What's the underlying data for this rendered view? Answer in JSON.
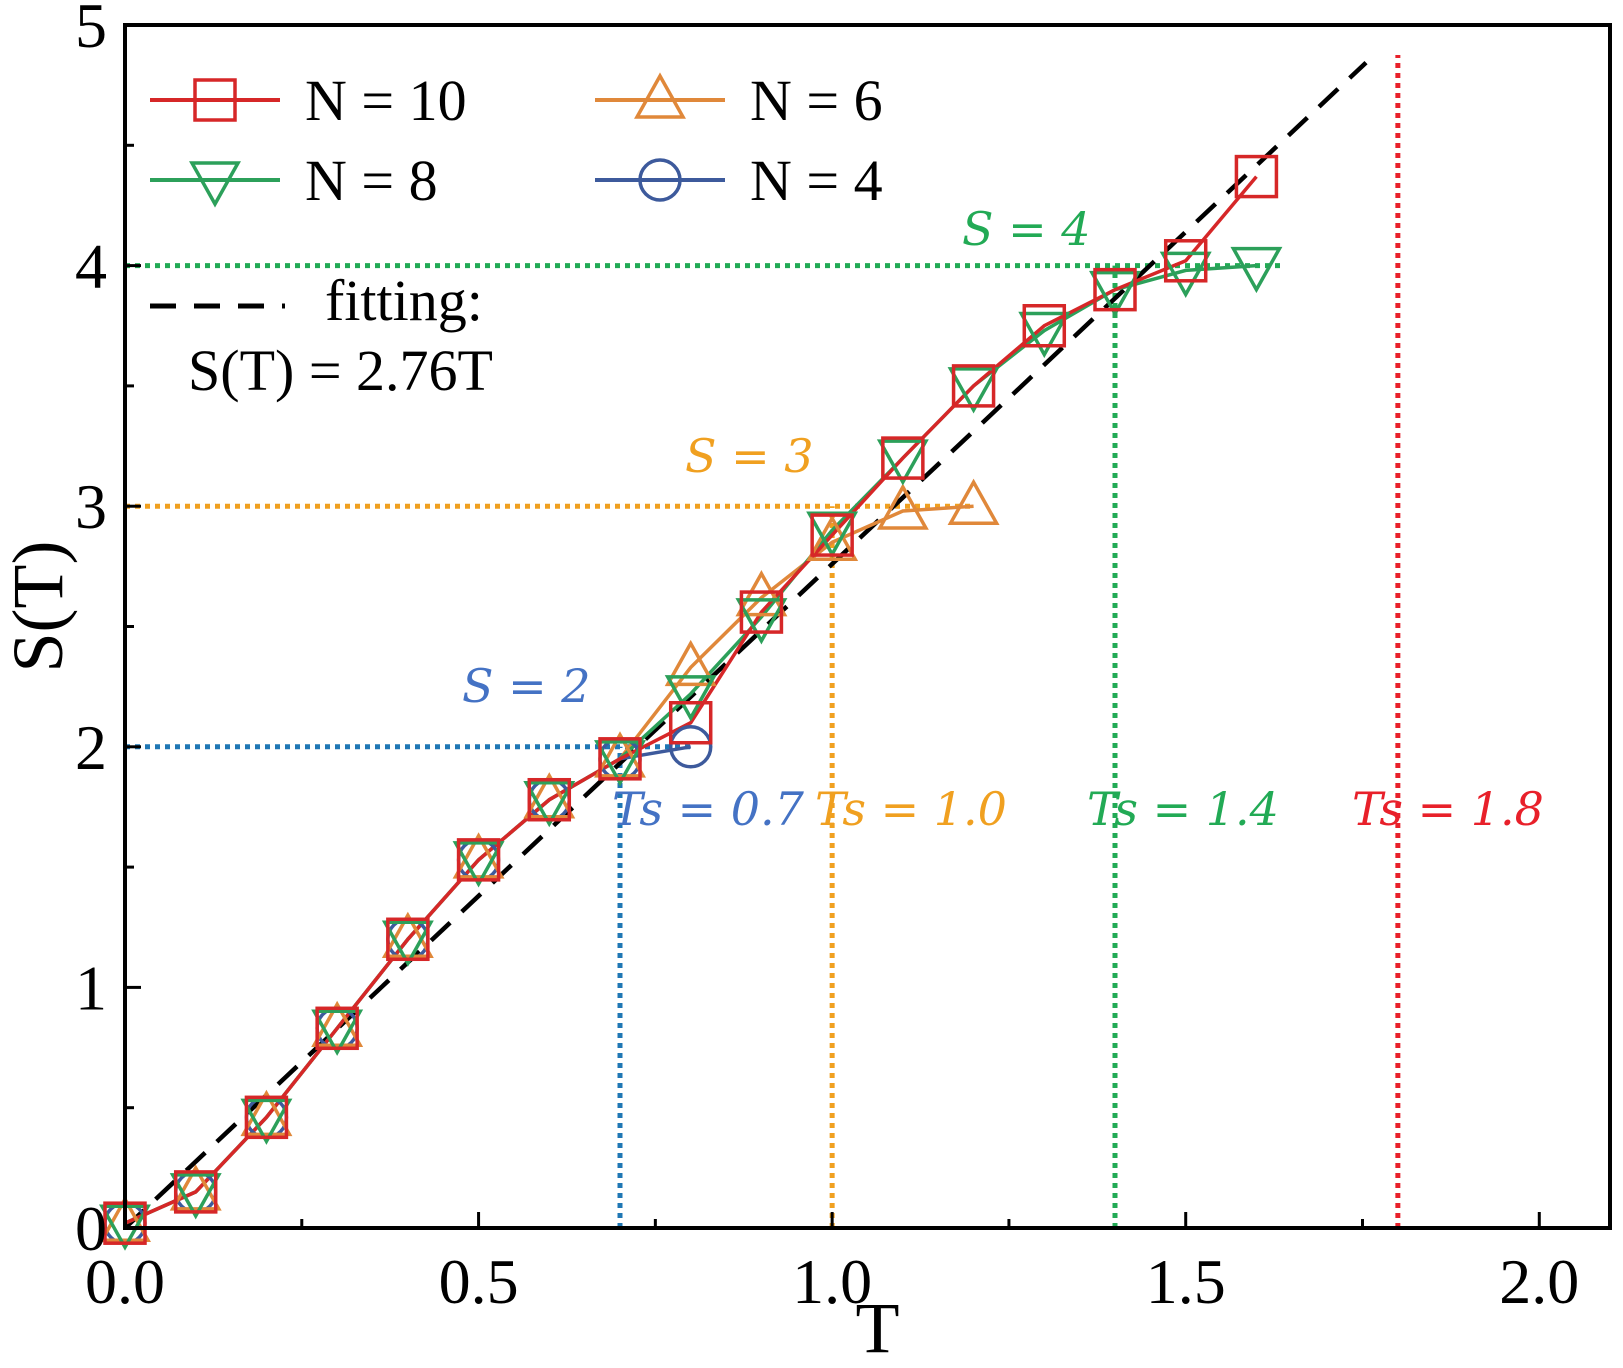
{
  "chart_data": {
    "type": "line",
    "xlabel": "T",
    "ylabel": "S(T)",
    "xlim": [
      0,
      2.1
    ],
    "ylim": [
      0,
      5
    ],
    "x_ticks": [
      "0.0",
      "0.5",
      "1.0",
      "1.5",
      "2.0"
    ],
    "y_ticks": [
      "0",
      "1",
      "2",
      "3",
      "4",
      "5"
    ],
    "grid": false,
    "legend_position": "top-left",
    "series": [
      {
        "name": "N = 10",
        "color": "#d62728",
        "marker": "square",
        "x": [
          0.0,
          0.1,
          0.2,
          0.3,
          0.4,
          0.5,
          0.6,
          0.7,
          0.8,
          0.9,
          1.0,
          1.1,
          1.2,
          1.3,
          1.4,
          1.5,
          1.6
        ],
        "y": [
          0.02,
          0.15,
          0.46,
          0.83,
          1.2,
          1.53,
          1.78,
          1.95,
          2.1,
          2.56,
          2.88,
          3.2,
          3.5,
          3.75,
          3.9,
          4.02,
          4.37
        ]
      },
      {
        "name": "N = 8",
        "color": "#2ca05a",
        "marker": "triangle-down",
        "x": [
          0.0,
          0.1,
          0.2,
          0.3,
          0.4,
          0.5,
          0.6,
          0.7,
          0.8,
          0.9,
          1.0,
          1.1,
          1.2,
          1.3,
          1.4,
          1.5,
          1.6
        ],
        "y": [
          0.02,
          0.15,
          0.46,
          0.83,
          1.2,
          1.53,
          1.78,
          1.95,
          2.22,
          2.54,
          2.9,
          3.2,
          3.5,
          3.73,
          3.9,
          3.98,
          4.0
        ]
      },
      {
        "name": "N = 6",
        "color": "#e0883a",
        "marker": "triangle-up",
        "x": [
          0.0,
          0.1,
          0.2,
          0.3,
          0.4,
          0.5,
          0.6,
          0.7,
          0.8,
          0.9,
          1.0,
          1.1,
          1.2
        ],
        "y": [
          0.02,
          0.15,
          0.46,
          0.83,
          1.2,
          1.53,
          1.78,
          1.95,
          2.33,
          2.62,
          2.85,
          2.98,
          3.0
        ]
      },
      {
        "name": "N = 4",
        "color": "#3d5a9c",
        "marker": "circle",
        "x": [
          0.0,
          0.1,
          0.2,
          0.3,
          0.4,
          0.5,
          0.6,
          0.7,
          0.8
        ],
        "y": [
          0.02,
          0.15,
          0.46,
          0.83,
          1.2,
          1.53,
          1.78,
          1.95,
          2.0
        ]
      }
    ],
    "fit": {
      "name": "fitting:",
      "equation": "S(T) = 2.76T",
      "slope": 2.76,
      "color": "#000000"
    },
    "annotations": [
      {
        "id": "s2",
        "text": "S = 2",
        "color": "#4472c4",
        "s_level": 2,
        "t_s": 0.7,
        "ts_text": "Ts = 0.7",
        "line_color": "#1f77b4"
      },
      {
        "id": "s3",
        "text": "S = 3",
        "color": "#f0a020",
        "s_level": 3,
        "t_s": 1.0,
        "ts_text": "Ts = 1.0",
        "line_color": "#f0a020"
      },
      {
        "id": "s4",
        "text": "S = 4",
        "color": "#22aa55",
        "s_level": 4,
        "t_s": 1.4,
        "ts_text": "Ts = 1.4",
        "line_color": "#22aa55"
      },
      {
        "id": "s5",
        "text": "",
        "color": "#e8202a",
        "s_level": null,
        "t_s": 1.8,
        "ts_text": "Ts = 1.8",
        "line_color": "#e8202a"
      }
    ]
  }
}
